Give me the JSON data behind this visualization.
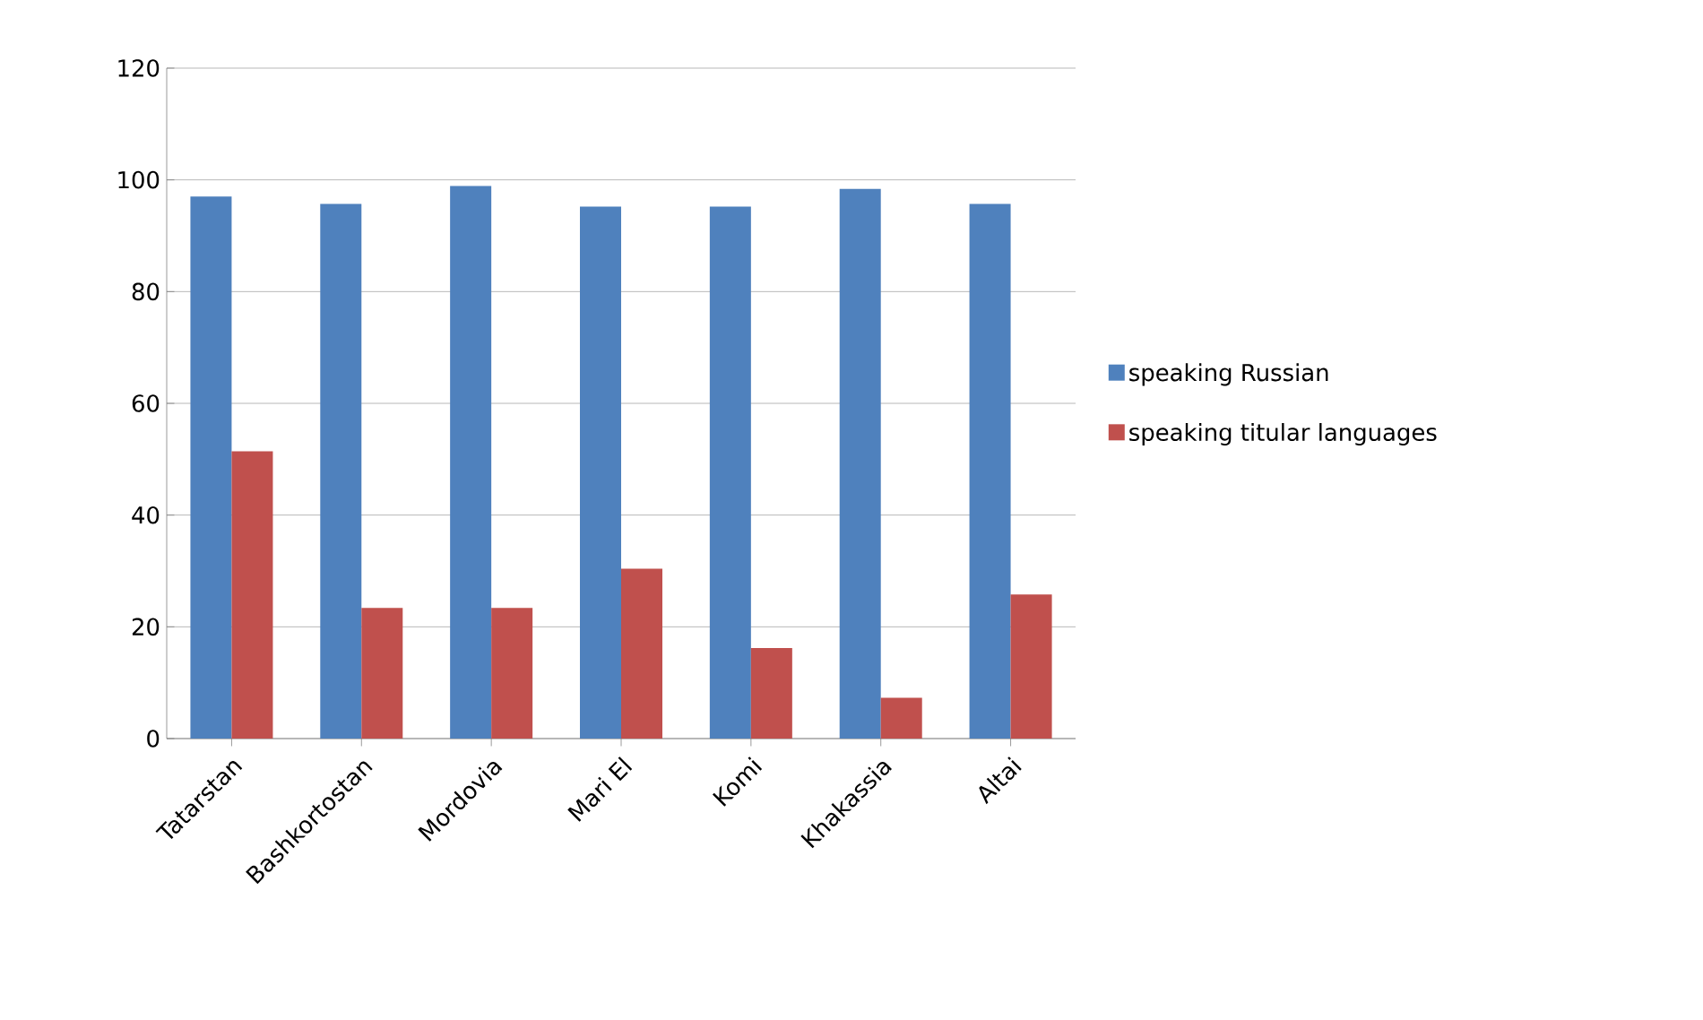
{
  "chart_data": {
    "type": "bar",
    "categories": [
      "Tatarstan",
      "Bashkortostan",
      "Mordovia",
      "Mari El",
      "Komi",
      "Khakassia",
      "Altai"
    ],
    "series": [
      {
        "name": "speaking Russian",
        "color": "#4f81bd",
        "values": [
          97.0,
          95.7,
          98.9,
          95.2,
          95.2,
          98.4,
          95.7
        ]
      },
      {
        "name": "speaking titular languages",
        "color": "#c0504d",
        "values": [
          51.4,
          23.4,
          23.4,
          30.4,
          16.2,
          7.3,
          25.8
        ]
      }
    ],
    "ylim": [
      0,
      120
    ],
    "yticks": [
      0,
      20,
      40,
      60,
      80,
      100,
      120
    ],
    "grid": "y",
    "legend": "right"
  }
}
